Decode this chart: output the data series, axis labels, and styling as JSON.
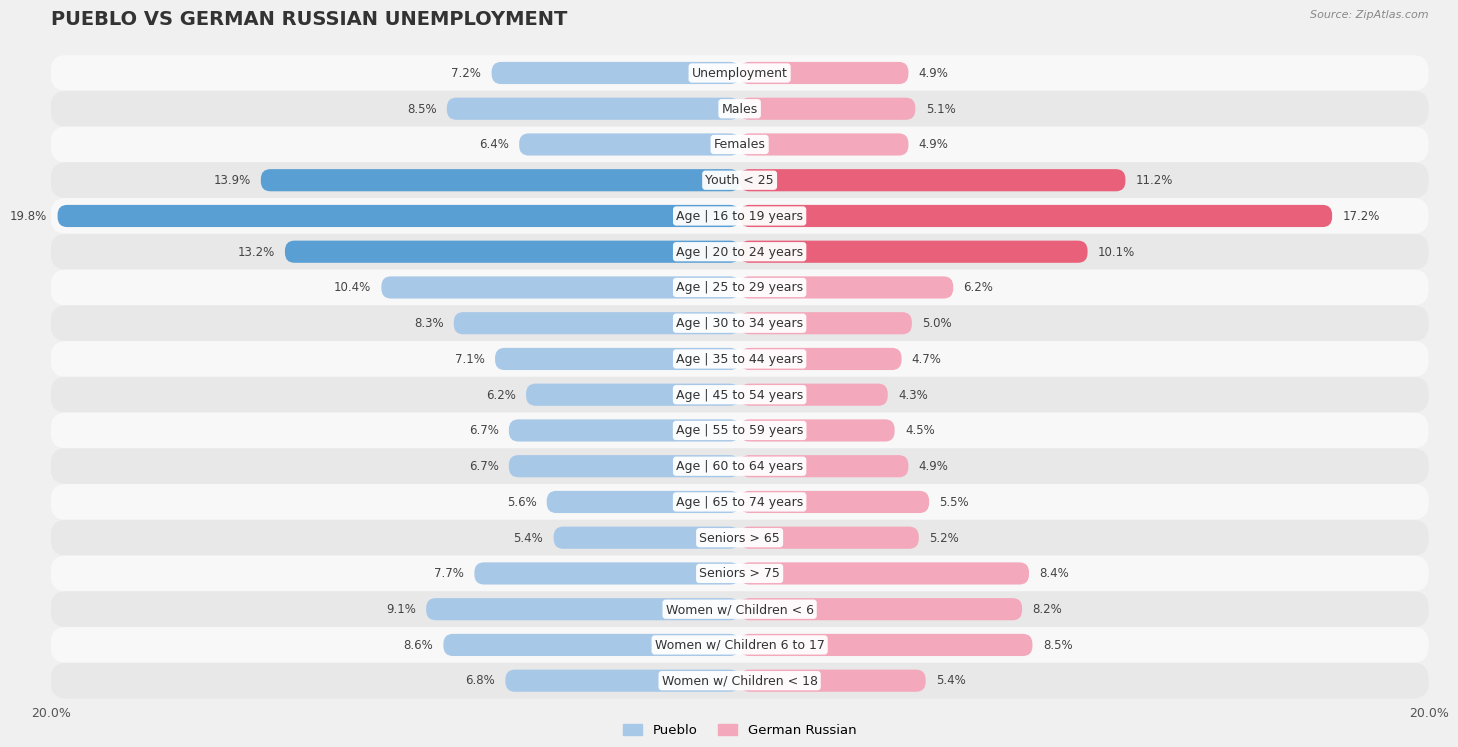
{
  "title": "PUEBLO VS GERMAN RUSSIAN UNEMPLOYMENT",
  "source": "Source: ZipAtlas.com",
  "categories": [
    "Unemployment",
    "Males",
    "Females",
    "Youth < 25",
    "Age | 16 to 19 years",
    "Age | 20 to 24 years",
    "Age | 25 to 29 years",
    "Age | 30 to 34 years",
    "Age | 35 to 44 years",
    "Age | 45 to 54 years",
    "Age | 55 to 59 years",
    "Age | 60 to 64 years",
    "Age | 65 to 74 years",
    "Seniors > 65",
    "Seniors > 75",
    "Women w/ Children < 6",
    "Women w/ Children 6 to 17",
    "Women w/ Children < 18"
  ],
  "pueblo_values": [
    7.2,
    8.5,
    6.4,
    13.9,
    19.8,
    13.2,
    10.4,
    8.3,
    7.1,
    6.2,
    6.7,
    6.7,
    5.6,
    5.4,
    7.7,
    9.1,
    8.6,
    6.8
  ],
  "german_russian_values": [
    4.9,
    5.1,
    4.9,
    11.2,
    17.2,
    10.1,
    6.2,
    5.0,
    4.7,
    4.3,
    4.5,
    4.9,
    5.5,
    5.2,
    8.4,
    8.2,
    8.5,
    5.4
  ],
  "pueblo_color": "#a8c8e8",
  "german_russian_color": "#f4a8bc",
  "pueblo_highlight_color": "#5a9fd4",
  "german_russian_highlight_color": "#e8607a",
  "highlight_rows": [
    3,
    4,
    5
  ],
  "axis_max": 20.0,
  "bg_color": "#f0f0f0",
  "row_bg_even": "#f8f8f8",
  "row_bg_odd": "#e8e8e8",
  "title_fontsize": 14,
  "label_fontsize": 9,
  "value_fontsize": 8.5,
  "legend_labels": [
    "Pueblo",
    "German Russian"
  ]
}
